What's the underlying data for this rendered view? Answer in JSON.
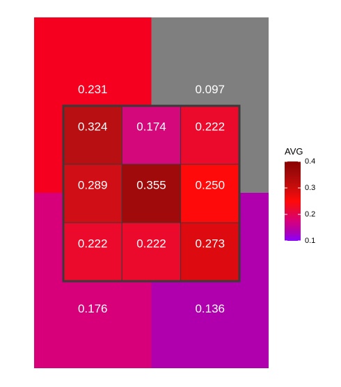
{
  "chart_data": {
    "type": "heatmap",
    "title": "",
    "xlabel": "",
    "ylabel": "",
    "grid": false,
    "legend_position": "right",
    "legend": {
      "title": "AVG",
      "min": 0.1,
      "max": 0.4,
      "ticks": [
        "0.1",
        "0.2",
        "0.3",
        "0.4"
      ],
      "colors": [
        {
          "value": 0.097,
          "color": "#8a00ff"
        },
        {
          "value": 0.136,
          "color": "#b000ad"
        },
        {
          "value": 0.176,
          "color": "#d8007a"
        },
        {
          "value": 0.222,
          "color": "#ec0a2c"
        },
        {
          "value": 0.25,
          "color": "#ff0a0a"
        },
        {
          "value": 0.3,
          "color": "#cc0c0c"
        },
        {
          "value": 0.355,
          "color": "#a10a0a"
        },
        {
          "value": 0.4,
          "color": "#8b0000"
        }
      ]
    },
    "missing_color": "#7f7f7f",
    "outer_grid": {
      "rows": 2,
      "cols": 2,
      "cells": [
        {
          "row": 0,
          "col": 0,
          "value": 0.231,
          "label": "0.231",
          "color": "#f5001f"
        },
        {
          "row": 0,
          "col": 1,
          "value": 0.097,
          "label": "0.097",
          "color": "#7f7f7f"
        },
        {
          "row": 1,
          "col": 0,
          "value": 0.176,
          "label": "0.176",
          "color": "#d8007a"
        },
        {
          "row": 1,
          "col": 1,
          "value": 0.136,
          "label": "0.136",
          "color": "#b000ad"
        }
      ]
    },
    "inner_grid": {
      "rows": 3,
      "cols": 3,
      "cells": [
        {
          "row": 0,
          "col": 0,
          "value": 0.324,
          "label": "0.324",
          "color": "#b70f12"
        },
        {
          "row": 0,
          "col": 1,
          "value": 0.174,
          "label": "0.174",
          "color": "#d4077b"
        },
        {
          "row": 0,
          "col": 2,
          "value": 0.222,
          "label": "0.222",
          "color": "#ec0a2c"
        },
        {
          "row": 1,
          "col": 0,
          "value": 0.289,
          "label": "0.289",
          "color": "#cf0e16"
        },
        {
          "row": 1,
          "col": 1,
          "value": 0.355,
          "label": "0.355",
          "color": "#a10a0a"
        },
        {
          "row": 1,
          "col": 2,
          "value": 0.25,
          "label": "0.250",
          "color": "#ff0a0a"
        },
        {
          "row": 2,
          "col": 0,
          "value": 0.222,
          "label": "0.222",
          "color": "#ec0a2c"
        },
        {
          "row": 2,
          "col": 1,
          "value": 0.222,
          "label": "0.222",
          "color": "#ec0a2c"
        },
        {
          "row": 2,
          "col": 2,
          "value": 0.273,
          "label": "0.273",
          "color": "#dd0a10"
        }
      ]
    }
  }
}
